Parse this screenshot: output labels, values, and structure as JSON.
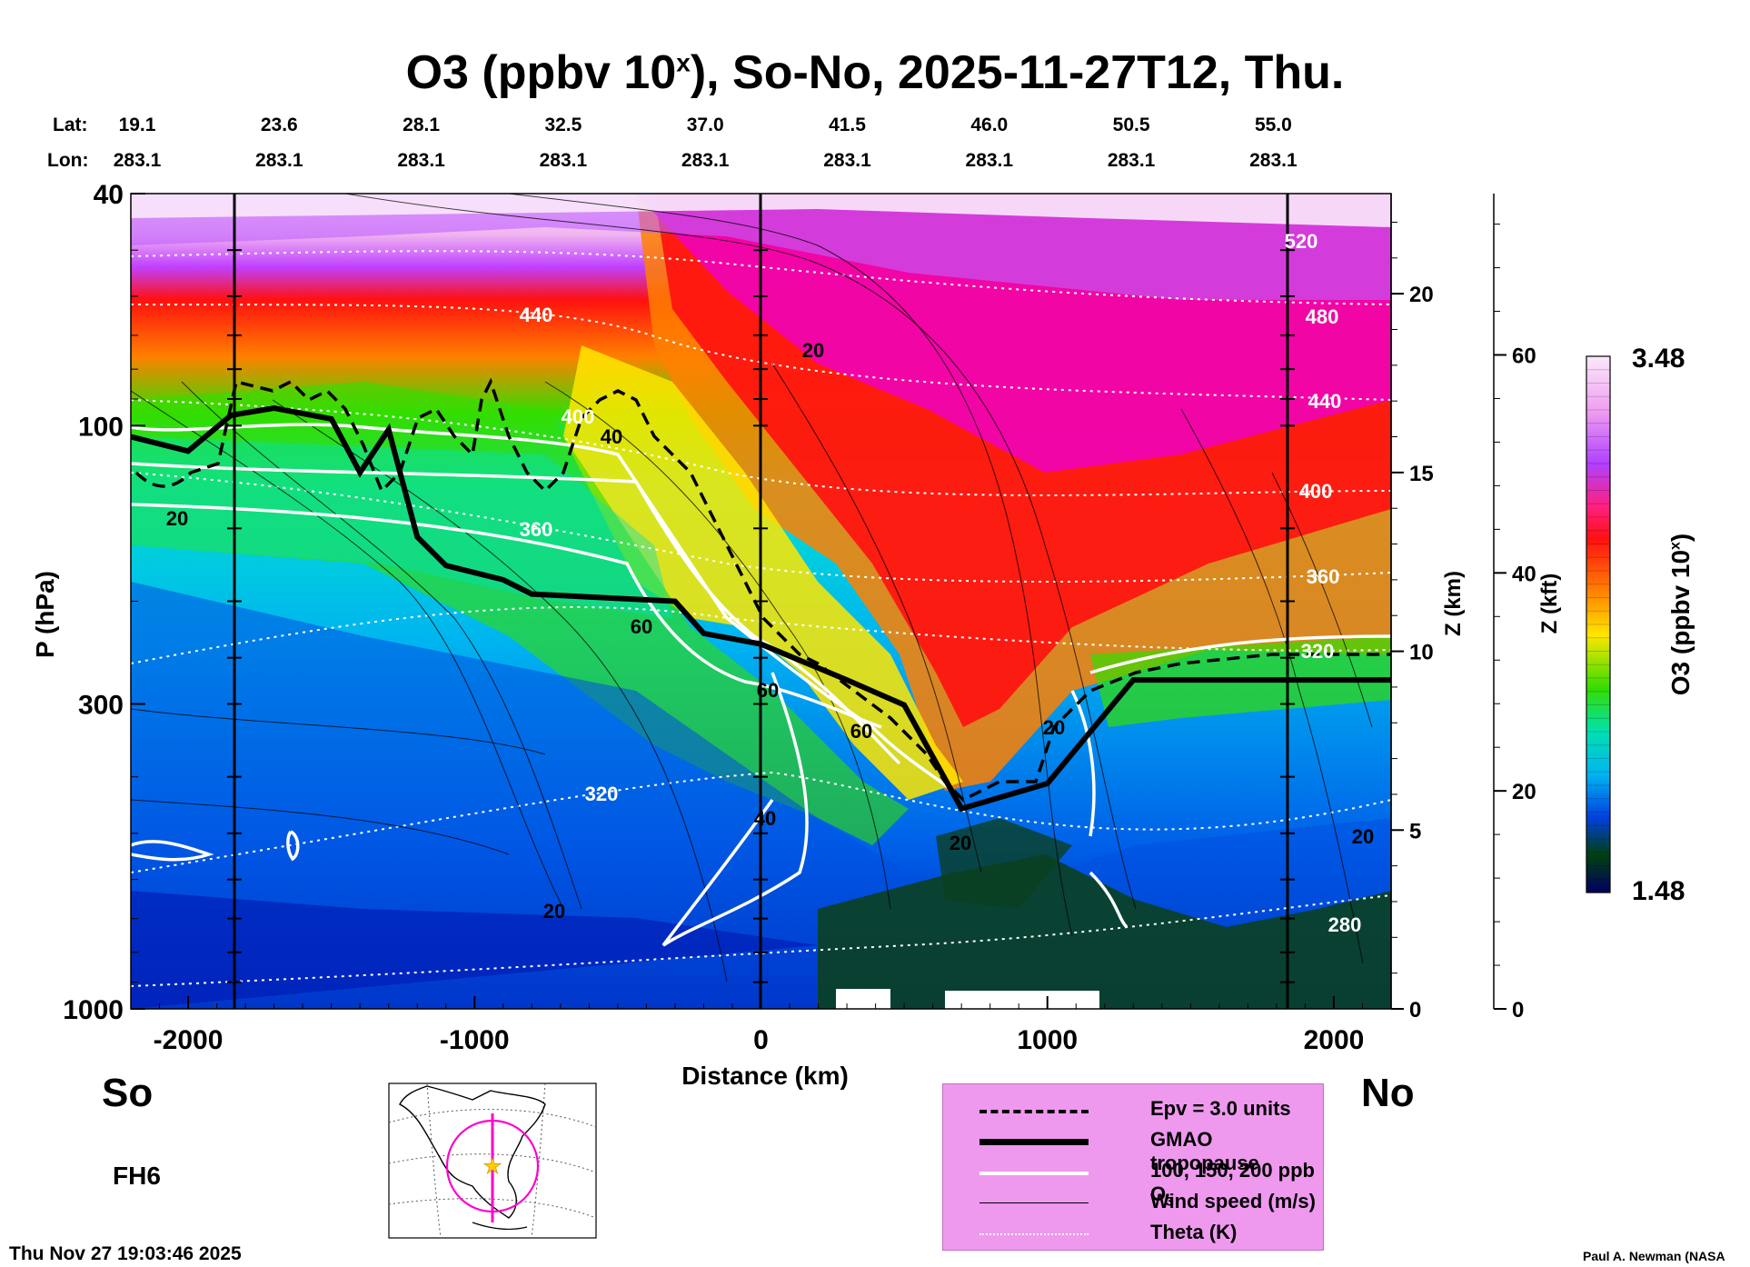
{
  "header": {
    "title_main": "O3 (ppbv 10",
    "title_sup": "x",
    "title_rest": "), So-No, 2025-11-27T12, Thu."
  },
  "chart_data": {
    "type": "heatmap",
    "title": "O3 (ppbv 10^x), So-No, 2025-11-27T12, Thu.",
    "xlabel": "Distance (km)",
    "ylabel": "P (hPa)",
    "ylabel_right_km": "Z (km)",
    "ylabel_right_kft": "Z (kft)",
    "colorbar_label": "O3 (ppbv 10^x)",
    "xlim": [
      -2200,
      2200
    ],
    "ylim_pressure": [
      1000,
      40
    ],
    "x_ticks": [
      -2000,
      -1000,
      0,
      1000,
      2000
    ],
    "p_ticks": [
      40,
      100,
      300,
      1000
    ],
    "z_km_ticks": [
      0,
      5,
      10,
      15,
      20
    ],
    "z_kft_ticks": [
      0,
      20,
      40,
      60
    ],
    "colorbar_range": [
      1.48,
      3.48
    ],
    "colorbar_max_label": "3.48",
    "colorbar_min_label": "1.48",
    "lat_label": "Lat:",
    "lon_label": "Lon:",
    "lats": [
      "19.1",
      "23.6",
      "28.1",
      "32.5",
      "37.0",
      "41.5",
      "46.0",
      "50.5",
      "55.0"
    ],
    "lons": [
      "283.1",
      "283.1",
      "283.1",
      "283.1",
      "283.1",
      "283.1",
      "283.1",
      "283.1",
      "283.1"
    ],
    "theta_labels": [
      "520",
      "480",
      "440",
      "440",
      "400",
      "400",
      "360",
      "360",
      "320",
      "320",
      "280"
    ],
    "wind_labels": [
      "20",
      "20",
      "40",
      "60",
      "60",
      "60",
      "40",
      "20",
      "20",
      "20",
      "20"
    ],
    "tropopause_km": [
      [
        -2200,
        16.0
      ],
      [
        -2000,
        15.6
      ],
      [
        -1850,
        16.6
      ],
      [
        -1700,
        16.8
      ],
      [
        -1500,
        16.5
      ],
      [
        -1400,
        15.0
      ],
      [
        -1300,
        16.2
      ],
      [
        -1200,
        13.2
      ],
      [
        -1100,
        12.4
      ],
      [
        -900,
        12.0
      ],
      [
        -800,
        11.6
      ],
      [
        -300,
        11.4
      ],
      [
        -200,
        10.5
      ],
      [
        0,
        10.2
      ],
      [
        300,
        9.2
      ],
      [
        500,
        8.5
      ],
      [
        700,
        5.6
      ],
      [
        1000,
        6.3
      ],
      [
        1300,
        9.2
      ],
      [
        2200,
        9.2
      ]
    ]
  },
  "sidebar": {
    "region_label": "So",
    "region_label_right": "No",
    "forecast_hour": "FH6"
  },
  "legend": {
    "epv": "Epv = 3.0 units",
    "tropopause": "GMAO tropopause",
    "ozone": "100, 150, 200 ppb O",
    "ozone_sub": "3",
    "wind": "Wind speed (m/s)",
    "theta": "Theta (K)"
  },
  "footer": {
    "timestamp": "Thu Nov 27 19:03:46 2025",
    "credit": "Paul A. Newman (NASA"
  },
  "colors": {
    "low": "#000060",
    "mid": "#00b4f0",
    "green": "#33dd00",
    "yellow": "#ffe600",
    "red": "#ff1010",
    "magenta": "#ee00cc",
    "top": "#fbe8fb"
  }
}
